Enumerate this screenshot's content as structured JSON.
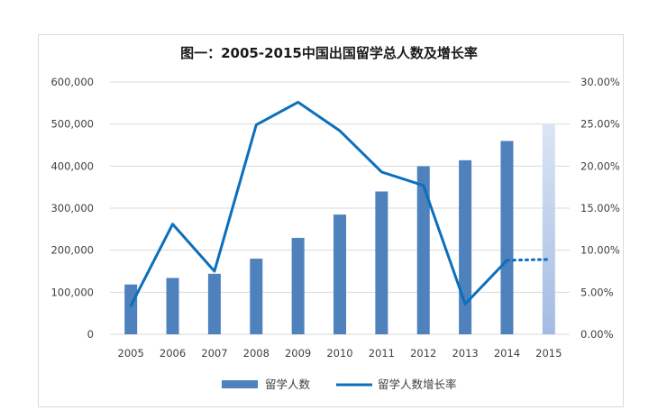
{
  "chart_data": {
    "type": "bar+line",
    "title": "图一：2005-2015中国出国留学总人数及增长率",
    "categories": [
      "2005",
      "2006",
      "2007",
      "2008",
      "2009",
      "2010",
      "2011",
      "2012",
      "2013",
      "2014",
      "2015"
    ],
    "series": [
      {
        "name": "留学人数",
        "type": "bar",
        "axis": "left",
        "values": [
          118500,
          134000,
          144000,
          179800,
          229300,
          284700,
          339700,
          399600,
          413900,
          459800,
          500000
        ],
        "projected_index": 10
      },
      {
        "name": "留学人数增长率",
        "type": "line",
        "axis": "right",
        "values": [
          0.034,
          0.131,
          0.075,
          0.249,
          0.276,
          0.242,
          0.193,
          0.177,
          0.036,
          0.088,
          0.089
        ],
        "projected_from_index": 9
      }
    ],
    "y_left": {
      "min": 0,
      "max": 600000,
      "ticks": [
        "0",
        "100,000",
        "200,000",
        "300,000",
        "400,000",
        "500,000",
        "600,000"
      ]
    },
    "y_right": {
      "min": 0,
      "max": 0.3,
      "ticks": [
        "0.00%",
        "5.00%",
        "10.00%",
        "15.00%",
        "20.00%",
        "25.00%",
        "30.00%"
      ]
    },
    "grid": true,
    "legend": "bottom"
  },
  "colors": {
    "bar": "#4f81bd",
    "bar_projected_top": "#dbe5f4",
    "bar_projected_bottom": "#a3bbe3",
    "line": "#0a6fbd",
    "grid": "#d9d9d9",
    "text": "#404040"
  }
}
